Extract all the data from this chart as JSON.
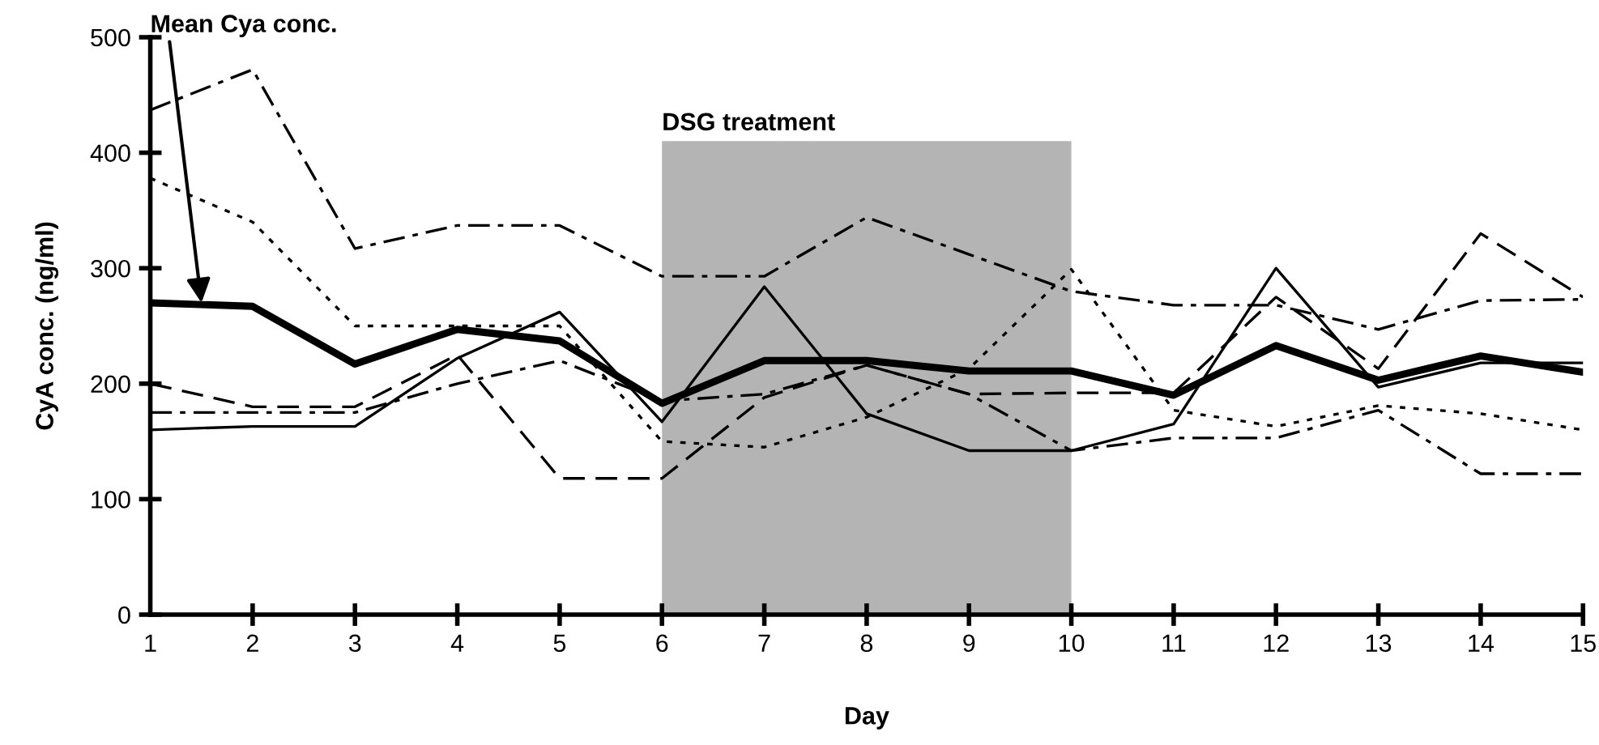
{
  "chart_data": {
    "type": "line",
    "xlabel": "Day",
    "ylabel": "CyA conc. (ng/ml)",
    "x": [
      1,
      2,
      3,
      4,
      5,
      6,
      7,
      8,
      9,
      10,
      11,
      12,
      13,
      14,
      15
    ],
    "xlim": [
      1,
      15
    ],
    "xticks": [
      1,
      2,
      3,
      4,
      5,
      6,
      7,
      8,
      9,
      10,
      11,
      12,
      13,
      14,
      15
    ],
    "ylim": [
      0,
      500
    ],
    "yticks": [
      0,
      100,
      200,
      300,
      400,
      500
    ],
    "grid": false,
    "legend": false,
    "marker": "none",
    "bands": [
      {
        "axis": "x",
        "from": 6,
        "to": 10,
        "label": "DSG treatment",
        "color": "#b4b4b4"
      }
    ],
    "annotations": [
      {
        "text": "Mean Cya conc.",
        "x": 1.5,
        "y": 270
      }
    ],
    "series": [
      {
        "color": "#000000",
        "line_style": "solid",
        "values": [
          270,
          267,
          217,
          247,
          237,
          183,
          220,
          220,
          211,
          211,
          190,
          233,
          203,
          224,
          210
        ]
      },
      {
        "color": "#000000",
        "line_style": "solid",
        "values": [
          160,
          163,
          163,
          222,
          262,
          167,
          284,
          174,
          142,
          142,
          165,
          300,
          197,
          218,
          218
        ]
      },
      {
        "color": "#000000",
        "line_style": "dashdot",
        "values": [
          437,
          472,
          317,
          337,
          337,
          293,
          293,
          344,
          312,
          280,
          268,
          268,
          247,
          272,
          273
        ]
      },
      {
        "color": "#000000",
        "line_style": "dashed",
        "values": [
          200,
          180,
          180,
          225,
          118,
          118,
          188,
          216,
          191,
          192,
          192,
          275,
          213,
          330,
          275
        ]
      },
      {
        "color": "#000000",
        "line_style": "dotted",
        "values": [
          378,
          340,
          250,
          250,
          250,
          150,
          145,
          171,
          213,
          299,
          177,
          163,
          181,
          174,
          160
        ]
      },
      {
        "color": "#000000",
        "line_style": "dashdot",
        "values": [
          175,
          175,
          175,
          200,
          220,
          185,
          191,
          216,
          191,
          142,
          153,
          153,
          177,
          122,
          122
        ]
      }
    ]
  }
}
